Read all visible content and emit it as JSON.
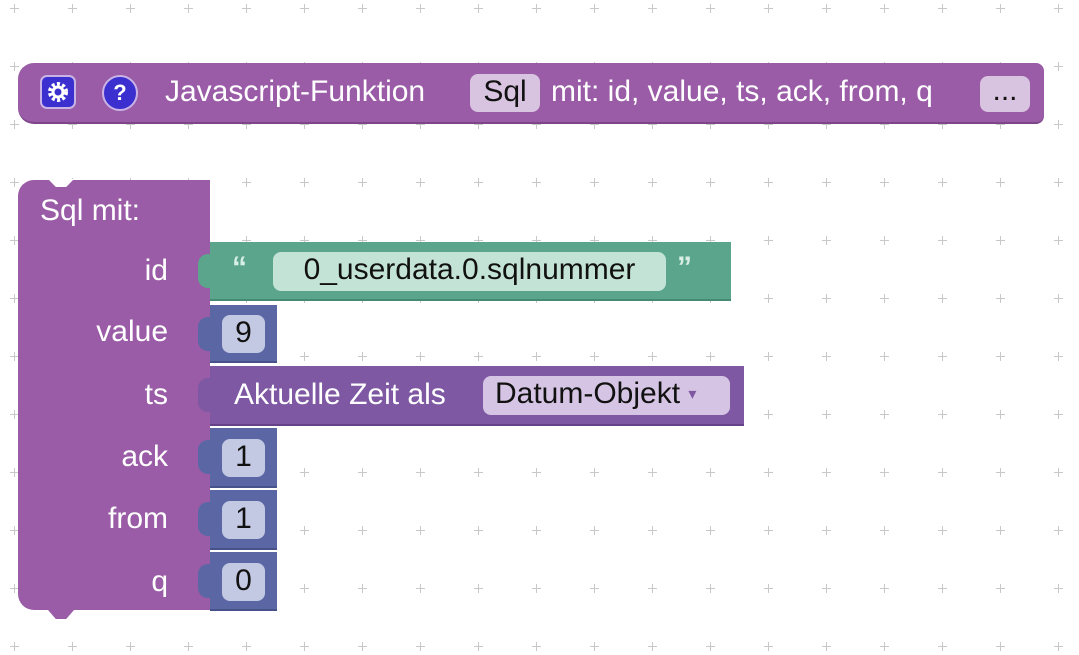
{
  "colors": {
    "function_block": "#9a5ca6",
    "string_block": "#5ba58c",
    "number_block": "#5b67a5",
    "time_block": "#7e58a3"
  },
  "header_block": {
    "gear_icon": "gear-icon",
    "help_icon": "help-icon",
    "help_glyph": "?",
    "title": "Javascript-Funktion",
    "name": "Sql",
    "params": "mit: id, value, ts, ack, from, q",
    "more": "..."
  },
  "call_block": {
    "title": "Sql  mit:",
    "inputs": [
      {
        "label": "id",
        "type": "string",
        "open_quote": "“",
        "value": "0_userdata.0.sqlnummer",
        "close_quote": "”"
      },
      {
        "label": "value",
        "type": "number",
        "value": "9"
      },
      {
        "label": "ts",
        "type": "time",
        "text": "Aktuelle Zeit als",
        "dropdown": "Datum-Objekt",
        "dropdown_arrow": "▾"
      },
      {
        "label": "ack",
        "type": "number",
        "value": "1"
      },
      {
        "label": "from",
        "type": "number",
        "value": "1"
      },
      {
        "label": "q",
        "type": "number",
        "value": "0"
      }
    ]
  }
}
